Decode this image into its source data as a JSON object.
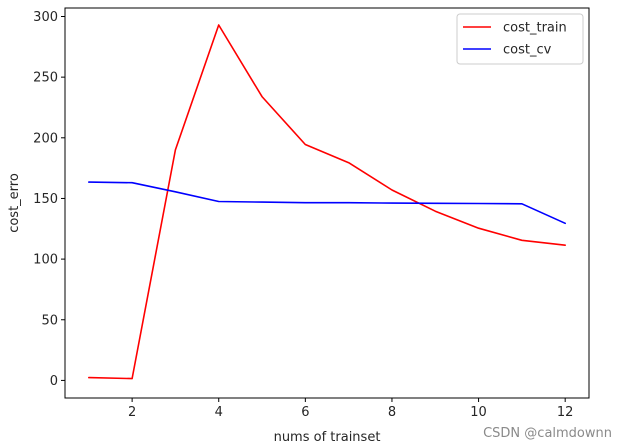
{
  "chart_data": {
    "type": "line",
    "title": "",
    "xlabel": "nums of trainset",
    "ylabel": "cost_erro",
    "xlim": [
      0.45,
      12.55
    ],
    "ylim": [
      -14.5,
      307
    ],
    "xticks": [
      2,
      4,
      6,
      8,
      10,
      12
    ],
    "yticks": [
      0,
      50,
      100,
      150,
      200,
      250,
      300
    ],
    "x": [
      1,
      2,
      3,
      4,
      5,
      6,
      7,
      8,
      9,
      10,
      11,
      12
    ],
    "grid": false,
    "legend_position": "top-right",
    "series": [
      {
        "name": "cost_train",
        "color": "#ff0000",
        "values": [
          2.3,
          1.5,
          190,
          293,
          234,
          194.5,
          179.5,
          157,
          139.5,
          125.5,
          115.5,
          111.5
        ]
      },
      {
        "name": "cost_cv",
        "color": "#0000ff",
        "values": [
          163.5,
          163,
          155.5,
          147.5,
          147,
          146.5,
          146.5,
          146.2,
          146,
          145.8,
          145.6,
          129.5
        ]
      }
    ]
  },
  "watermark": "CSDN @calmdownn"
}
